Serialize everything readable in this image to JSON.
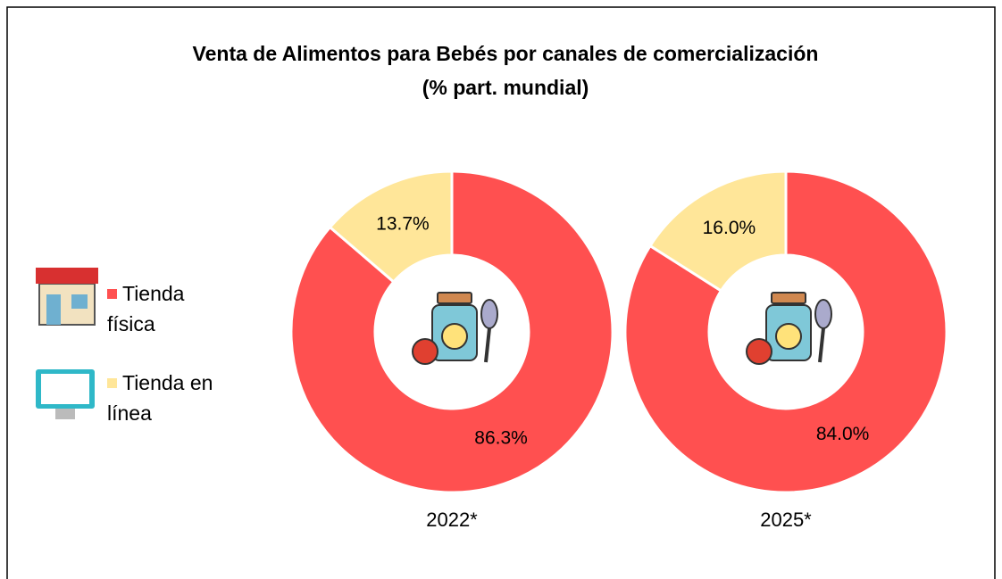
{
  "title": [
    "Venta de Alimentos para Bebés por canales de comercialización",
    "(% part. mundial)"
  ],
  "chart_data": [
    {
      "type": "donut",
      "label": "2022*",
      "categories": [
        "Tienda física",
        "Tienda en línea"
      ],
      "values": [
        86.3,
        13.7
      ],
      "value_labels": [
        "86.3%",
        "13.7%"
      ],
      "colors": [
        "#ff5050",
        "#ffe699"
      ]
    },
    {
      "type": "donut",
      "label": "2025*",
      "categories": [
        "Tienda física",
        "Tienda en línea"
      ],
      "values": [
        84.0,
        16.0
      ],
      "value_labels": [
        "84.0%",
        "16.0%"
      ],
      "colors": [
        "#ff5050",
        "#ffe699"
      ]
    }
  ]
}
